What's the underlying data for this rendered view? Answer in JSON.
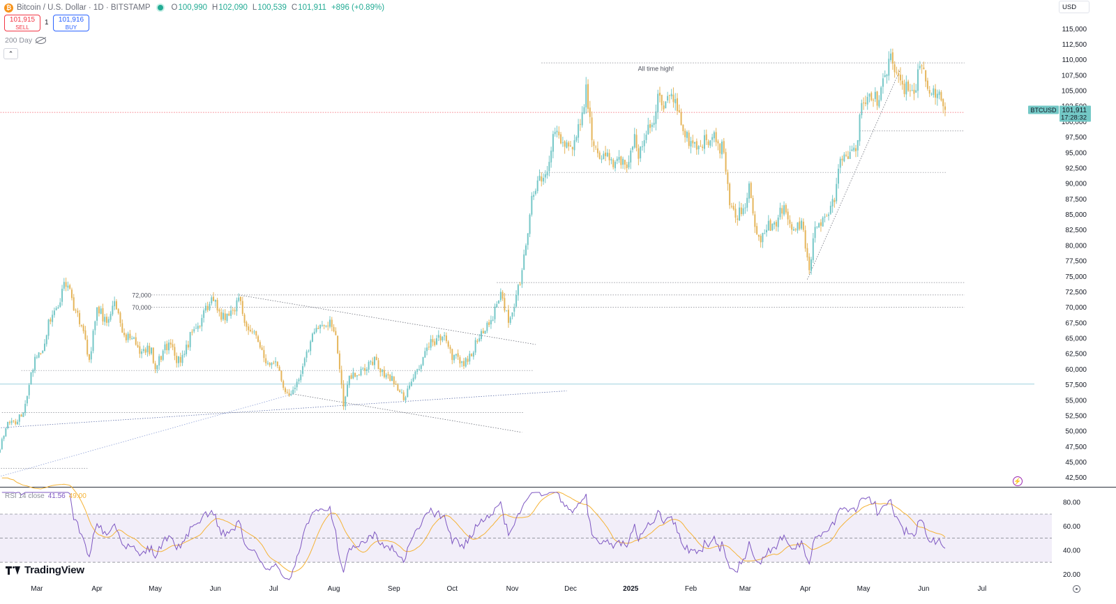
{
  "header": {
    "icon_glyph": "₿",
    "symbol": "Bitcoin / U.S. Dollar · 1D · BITSTAMP",
    "ohlc": [
      {
        "k": "O",
        "v": "100,990"
      },
      {
        "k": "H",
        "v": "102,090"
      },
      {
        "k": "L",
        "v": "100,539"
      },
      {
        "k": "C",
        "v": "101,911"
      }
    ],
    "change": "+896 (+0.89%)"
  },
  "trade": {
    "sell_price": "101,915",
    "sell_label": "SELL",
    "spread": "1",
    "buy_price": "101,916",
    "buy_label": "BUY"
  },
  "indicator": {
    "label": "200 Day",
    "icon": "eye-crossed-icon"
  },
  "collapse_glyph": "⌃",
  "currency": "USD",
  "rsi_header": {
    "label": "RSI 14 close",
    "value": "41.56",
    "ma_value": "49.00"
  },
  "logo": {
    "text": "TradingView"
  },
  "colors": {
    "up": "#75c7c7",
    "down": "#e5b55a",
    "rsi": "#7e57c2",
    "rsi_ma": "#f5b337",
    "price_tag": "#73c8c6"
  },
  "chart_data": {
    "type": "candlestick",
    "y_ticks": [
      42500,
      45000,
      47500,
      50000,
      52500,
      55000,
      57500,
      60000,
      62500,
      65000,
      67500,
      70000,
      72500,
      75000,
      77500,
      80000,
      82500,
      85000,
      87500,
      90000,
      92500,
      95000,
      97500,
      100000,
      102500,
      105000,
      107500,
      110000,
      112500,
      115000
    ],
    "ylim": [
      41000,
      116500
    ],
    "x_labels": [
      {
        "label": "Mar",
        "d": 59
      },
      {
        "label": "Apr",
        "d": 90
      },
      {
        "label": "May",
        "d": 120
      },
      {
        "label": "Jun",
        "d": 151
      },
      {
        "label": "Jul",
        "d": 181
      },
      {
        "label": "Aug",
        "d": 212
      },
      {
        "label": "Sep",
        "d": 243
      },
      {
        "label": "Oct",
        "d": 273
      },
      {
        "label": "Nov",
        "d": 304
      },
      {
        "label": "Dec",
        "d": 334
      },
      {
        "label": "2025",
        "d": 365,
        "bold": true
      },
      {
        "label": "Feb",
        "d": 396
      },
      {
        "label": "Mar",
        "d": 424
      },
      {
        "label": "Apr",
        "d": 455
      },
      {
        "label": "May",
        "d": 485
      },
      {
        "label": "Jun",
        "d": 516
      },
      {
        "label": "Jul",
        "d": 546
      }
    ],
    "price_anchors": [
      [
        40,
        47000
      ],
      [
        44,
        51500
      ],
      [
        49,
        51500
      ],
      [
        52,
        53000
      ],
      [
        58,
        62000
      ],
      [
        62,
        63000
      ],
      [
        65,
        68000
      ],
      [
        70,
        70000
      ],
      [
        72,
        73000
      ],
      [
        75,
        73500
      ],
      [
        78,
        69500
      ],
      [
        82,
        67000
      ],
      [
        86,
        61500
      ],
      [
        90,
        70000
      ],
      [
        95,
        67500
      ],
      [
        99,
        71000
      ],
      [
        104,
        65500
      ],
      [
        108,
        65000
      ],
      [
        112,
        62500
      ],
      [
        118,
        63500
      ],
      [
        120,
        60000
      ],
      [
        124,
        63000
      ],
      [
        128,
        64000
      ],
      [
        131,
        61000
      ],
      [
        135,
        62500
      ],
      [
        139,
        66000
      ],
      [
        142,
        67000
      ],
      [
        145,
        69500
      ],
      [
        150,
        71000
      ],
      [
        154,
        68000
      ],
      [
        160,
        69500
      ],
      [
        164,
        71000
      ],
      [
        166,
        67500
      ],
      [
        170,
        66000
      ],
      [
        174,
        63500
      ],
      [
        178,
        61000
      ],
      [
        183,
        60500
      ],
      [
        186,
        57000
      ],
      [
        190,
        56000
      ],
      [
        193,
        58000
      ],
      [
        196,
        60500
      ],
      [
        200,
        64500
      ],
      [
        204,
        66500
      ],
      [
        207,
        67000
      ],
      [
        210,
        68000
      ],
      [
        213,
        65500
      ],
      [
        215,
        60000
      ],
      [
        217,
        54000
      ],
      [
        219,
        57500
      ],
      [
        222,
        59500
      ],
      [
        225,
        59000
      ],
      [
        229,
        60000
      ],
      [
        233,
        62000
      ],
      [
        236,
        59500
      ],
      [
        240,
        59000
      ],
      [
        244,
        57500
      ],
      [
        248,
        55000
      ],
      [
        252,
        58000
      ],
      [
        256,
        60000
      ],
      [
        260,
        63500
      ],
      [
        265,
        65000
      ],
      [
        269,
        65500
      ],
      [
        273,
        61500
      ],
      [
        276,
        62000
      ],
      [
        279,
        60500
      ],
      [
        282,
        62500
      ],
      [
        287,
        65000
      ],
      [
        291,
        67500
      ],
      [
        294,
        68000
      ],
      [
        298,
        72500
      ],
      [
        302,
        67500
      ],
      [
        305,
        70000
      ],
      [
        309,
        76000
      ],
      [
        311,
        80000
      ],
      [
        314,
        88000
      ],
      [
        317,
        90500
      ],
      [
        321,
        91500
      ],
      [
        325,
        98000
      ],
      [
        329,
        96500
      ],
      [
        333,
        96000
      ],
      [
        336,
        97000
      ],
      [
        340,
        101500
      ],
      [
        342,
        106000
      ],
      [
        345,
        97000
      ],
      [
        350,
        94000
      ],
      [
        353,
        95000
      ],
      [
        357,
        93500
      ],
      [
        361,
        94000
      ],
      [
        364,
        93500
      ],
      [
        367,
        98000
      ],
      [
        369,
        94000
      ],
      [
        372,
        97000
      ],
      [
        376,
        99500
      ],
      [
        379,
        104500
      ],
      [
        382,
        102000
      ],
      [
        386,
        104500
      ],
      [
        390,
        101500
      ],
      [
        393,
        97500
      ],
      [
        397,
        96500
      ],
      [
        401,
        96000
      ],
      [
        404,
        97000
      ],
      [
        407,
        97500
      ],
      [
        410,
        96500
      ],
      [
        413,
        95000
      ],
      [
        416,
        86500
      ],
      [
        419,
        84500
      ],
      [
        423,
        86000
      ],
      [
        426,
        90000
      ],
      [
        429,
        83000
      ],
      [
        432,
        80500
      ],
      [
        435,
        82500
      ],
      [
        438,
        83500
      ],
      [
        441,
        84500
      ],
      [
        444,
        86500
      ],
      [
        447,
        83500
      ],
      [
        450,
        82500
      ],
      [
        453,
        84000
      ],
      [
        455,
        79500
      ],
      [
        457,
        76000
      ],
      [
        460,
        83000
      ],
      [
        464,
        84500
      ],
      [
        467,
        85000
      ],
      [
        470,
        87000
      ],
      [
        473,
        94000
      ],
      [
        476,
        94500
      ],
      [
        479,
        95500
      ],
      [
        482,
        97000
      ],
      [
        484,
        103000
      ],
      [
        487,
        104000
      ],
      [
        490,
        103500
      ],
      [
        493,
        103500
      ],
      [
        496,
        107500
      ],
      [
        499,
        111000
      ],
      [
        502,
        108000
      ],
      [
        505,
        106000
      ],
      [
        508,
        105000
      ],
      [
        511,
        104500
      ],
      [
        514,
        109000
      ],
      [
        517,
        106500
      ],
      [
        520,
        104500
      ],
      [
        523,
        104500
      ],
      [
        526,
        102500
      ],
      [
        527,
        101911
      ]
    ],
    "rsi_ticks": [
      20,
      40,
      60,
      80
    ],
    "rsi_ylim": [
      15,
      88
    ],
    "rsi_band": [
      30,
      70
    ],
    "rsi_mid": 50,
    "rsi_last": 41.56,
    "rsi_ma_last": 49.0,
    "price_line": 101911,
    "price_tag": {
      "symbol": "BTCUSD",
      "price": "101,911",
      "countdown": "17:28:32"
    },
    "hlines": [
      {
        "y": 109500,
        "d0": 319,
        "d1": 537
      },
      {
        "y": 101500,
        "d0": 0,
        "d1": 537,
        "color": "#f23645"
      },
      {
        "y": 98500,
        "d0": 483,
        "d1": 537
      },
      {
        "y": 91800,
        "d0": 318,
        "d1": 528
      },
      {
        "y": 74000,
        "d0": 296,
        "d1": 537
      },
      {
        "y": 72000,
        "d0": 118,
        "d1": 537
      },
      {
        "y": 70000,
        "d0": 118,
        "d1": 537
      },
      {
        "y": 59800,
        "d0": 51,
        "d1": 315
      },
      {
        "y": 57600,
        "d0": 0,
        "d1": 573,
        "color": "#7cc4d4"
      },
      {
        "y": 53000,
        "d0": 41,
        "d1": 310
      },
      {
        "y": 44000,
        "d0": 38,
        "d1": 85
      }
    ],
    "trendlines": [
      {
        "d0": 38,
        "y0": 50500,
        "d1": 332,
        "y1": 56500
      },
      {
        "d0": 163,
        "y0": 72000,
        "d1": 316,
        "y1": 64000
      },
      {
        "d0": 191,
        "y0": 56000,
        "d1": 309,
        "y1": 49800
      },
      {
        "d0": 38,
        "y0": 42500,
        "d1": 191,
        "y1": 56000
      },
      {
        "d0": 456,
        "y0": 74500,
        "d1": 504,
        "y1": 108500
      }
    ],
    "annotations": [
      {
        "text": "All time high!",
        "d": 378,
        "y": 108600
      },
      {
        "text": "72,000",
        "d": 108,
        "y": 72000
      },
      {
        "text": "70,000",
        "d": 108,
        "y": 70000
      }
    ]
  }
}
